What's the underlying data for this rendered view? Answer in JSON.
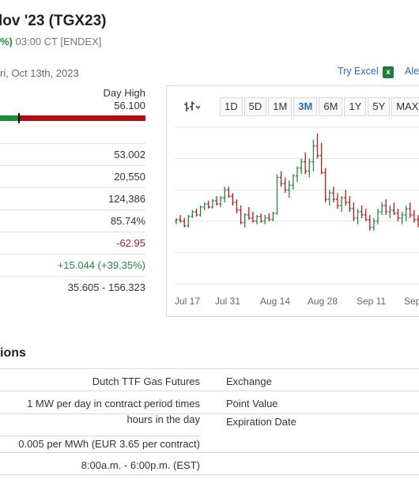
{
  "header": {
    "title": "lov '23 (TGX23)",
    "change_pct": "%)",
    "time_source": "03:00 CT [ENDEX]",
    "date": "ri, Oct 13th, 2023",
    "try_excel": "Try Excel",
    "alerts": "Ale"
  },
  "range": {
    "day_high_label": "Day High",
    "day_high_value": "56.100",
    "position_fraction": 0.13
  },
  "stats": [
    {
      "value": "53.002",
      "kind": "normal"
    },
    {
      "value": "20,550",
      "kind": "normal"
    },
    {
      "value": "124,386",
      "kind": "normal"
    },
    {
      "value": "85.74%",
      "kind": "normal"
    },
    {
      "value": "-62.95",
      "kind": "neg"
    },
    {
      "value": "+15.044 (+39.35%)",
      "kind": "pos"
    },
    {
      "value": "35.605 - 156.323",
      "kind": "normal"
    }
  ],
  "chart": {
    "timeframes": [
      "1D",
      "5D",
      "1M",
      "3M",
      "6M",
      "1Y",
      "5Y",
      "MAX"
    ],
    "active": "3M",
    "x_labels": [
      "Jul 17",
      "Jul 31",
      "Aug 14",
      "Aug 28",
      "Sep 11",
      "Sep"
    ],
    "colors": {
      "up": "#1e8c3a",
      "down": "#c5161d",
      "grid": "#e6e6e6"
    }
  },
  "chart_data": {
    "type": "ohlc",
    "x_start": "2023-07-14",
    "ylim": [
      0,
      100
    ],
    "bars": [
      [
        40,
        42,
        38,
        41
      ],
      [
        41,
        44,
        39,
        40
      ],
      [
        40,
        42,
        36,
        37
      ],
      [
        37,
        44,
        36,
        43
      ],
      [
        43,
        47,
        42,
        46
      ],
      [
        46,
        48,
        43,
        44
      ],
      [
        44,
        50,
        43,
        49
      ],
      [
        49,
        52,
        47,
        51
      ],
      [
        51,
        53,
        48,
        49
      ],
      [
        49,
        54,
        48,
        53
      ],
      [
        53,
        56,
        50,
        51
      ],
      [
        51,
        56,
        49,
        55
      ],
      [
        55,
        62,
        52,
        60
      ],
      [
        60,
        62,
        55,
        56
      ],
      [
        56,
        58,
        50,
        52
      ],
      [
        52,
        54,
        45,
        47
      ],
      [
        47,
        50,
        38,
        39
      ],
      [
        39,
        45,
        36,
        44
      ],
      [
        44,
        49,
        41,
        42
      ],
      [
        42,
        46,
        39,
        40
      ],
      [
        40,
        44,
        38,
        43
      ],
      [
        43,
        45,
        39,
        40
      ],
      [
        40,
        44,
        38,
        42
      ],
      [
        42,
        45,
        40,
        41
      ],
      [
        41,
        46,
        40,
        45
      ],
      [
        45,
        70,
        44,
        68
      ],
      [
        68,
        72,
        62,
        64
      ],
      [
        64,
        68,
        58,
        60
      ],
      [
        60,
        66,
        55,
        63
      ],
      [
        63,
        70,
        60,
        69
      ],
      [
        69,
        75,
        65,
        74
      ],
      [
        74,
        80,
        70,
        78
      ],
      [
        78,
        84,
        70,
        72
      ],
      [
        72,
        80,
        68,
        78
      ],
      [
        78,
        92,
        72,
        88
      ],
      [
        88,
        96,
        80,
        82
      ],
      [
        82,
        90,
        70,
        71
      ],
      [
        71,
        74,
        52,
        54
      ],
      [
        54,
        60,
        50,
        58
      ],
      [
        58,
        62,
        52,
        54
      ],
      [
        54,
        58,
        48,
        50
      ],
      [
        50,
        56,
        46,
        55
      ],
      [
        55,
        60,
        50,
        52
      ],
      [
        52,
        56,
        46,
        48
      ],
      [
        48,
        52,
        40,
        42
      ],
      [
        42,
        48,
        38,
        46
      ],
      [
        46,
        50,
        42,
        44
      ],
      [
        44,
        48,
        40,
        41
      ],
      [
        41,
        44,
        34,
        36
      ],
      [
        36,
        42,
        34,
        40
      ],
      [
        40,
        48,
        38,
        46
      ],
      [
        46,
        52,
        44,
        50
      ],
      [
        50,
        54,
        44,
        46
      ],
      [
        46,
        50,
        42,
        47
      ],
      [
        47,
        52,
        44,
        45
      ],
      [
        45,
        48,
        40,
        42
      ],
      [
        42,
        46,
        38,
        44
      ],
      [
        44,
        50,
        40,
        48
      ],
      [
        48,
        52,
        42,
        44
      ],
      [
        44,
        47,
        39,
        41
      ],
      [
        41,
        44,
        36,
        38
      ],
      [
        38,
        46,
        36,
        44
      ],
      [
        44,
        52,
        42,
        50
      ]
    ]
  },
  "specs": {
    "title": "ions",
    "rows": [
      {
        "value": "Dutch TTF Gas Futures",
        "key": "Exchange"
      },
      {
        "value": "1 MW per day in contract period times hours in the day",
        "key": "Point Value"
      },
      {
        "value": "",
        "key": "Expiration Date"
      },
      {
        "value": "0.005 per MWh (EUR 3.65 per contract)",
        "key": ""
      },
      {
        "value": "8:00a.m. - 6:00p.m. (EST)",
        "key": ""
      }
    ]
  }
}
